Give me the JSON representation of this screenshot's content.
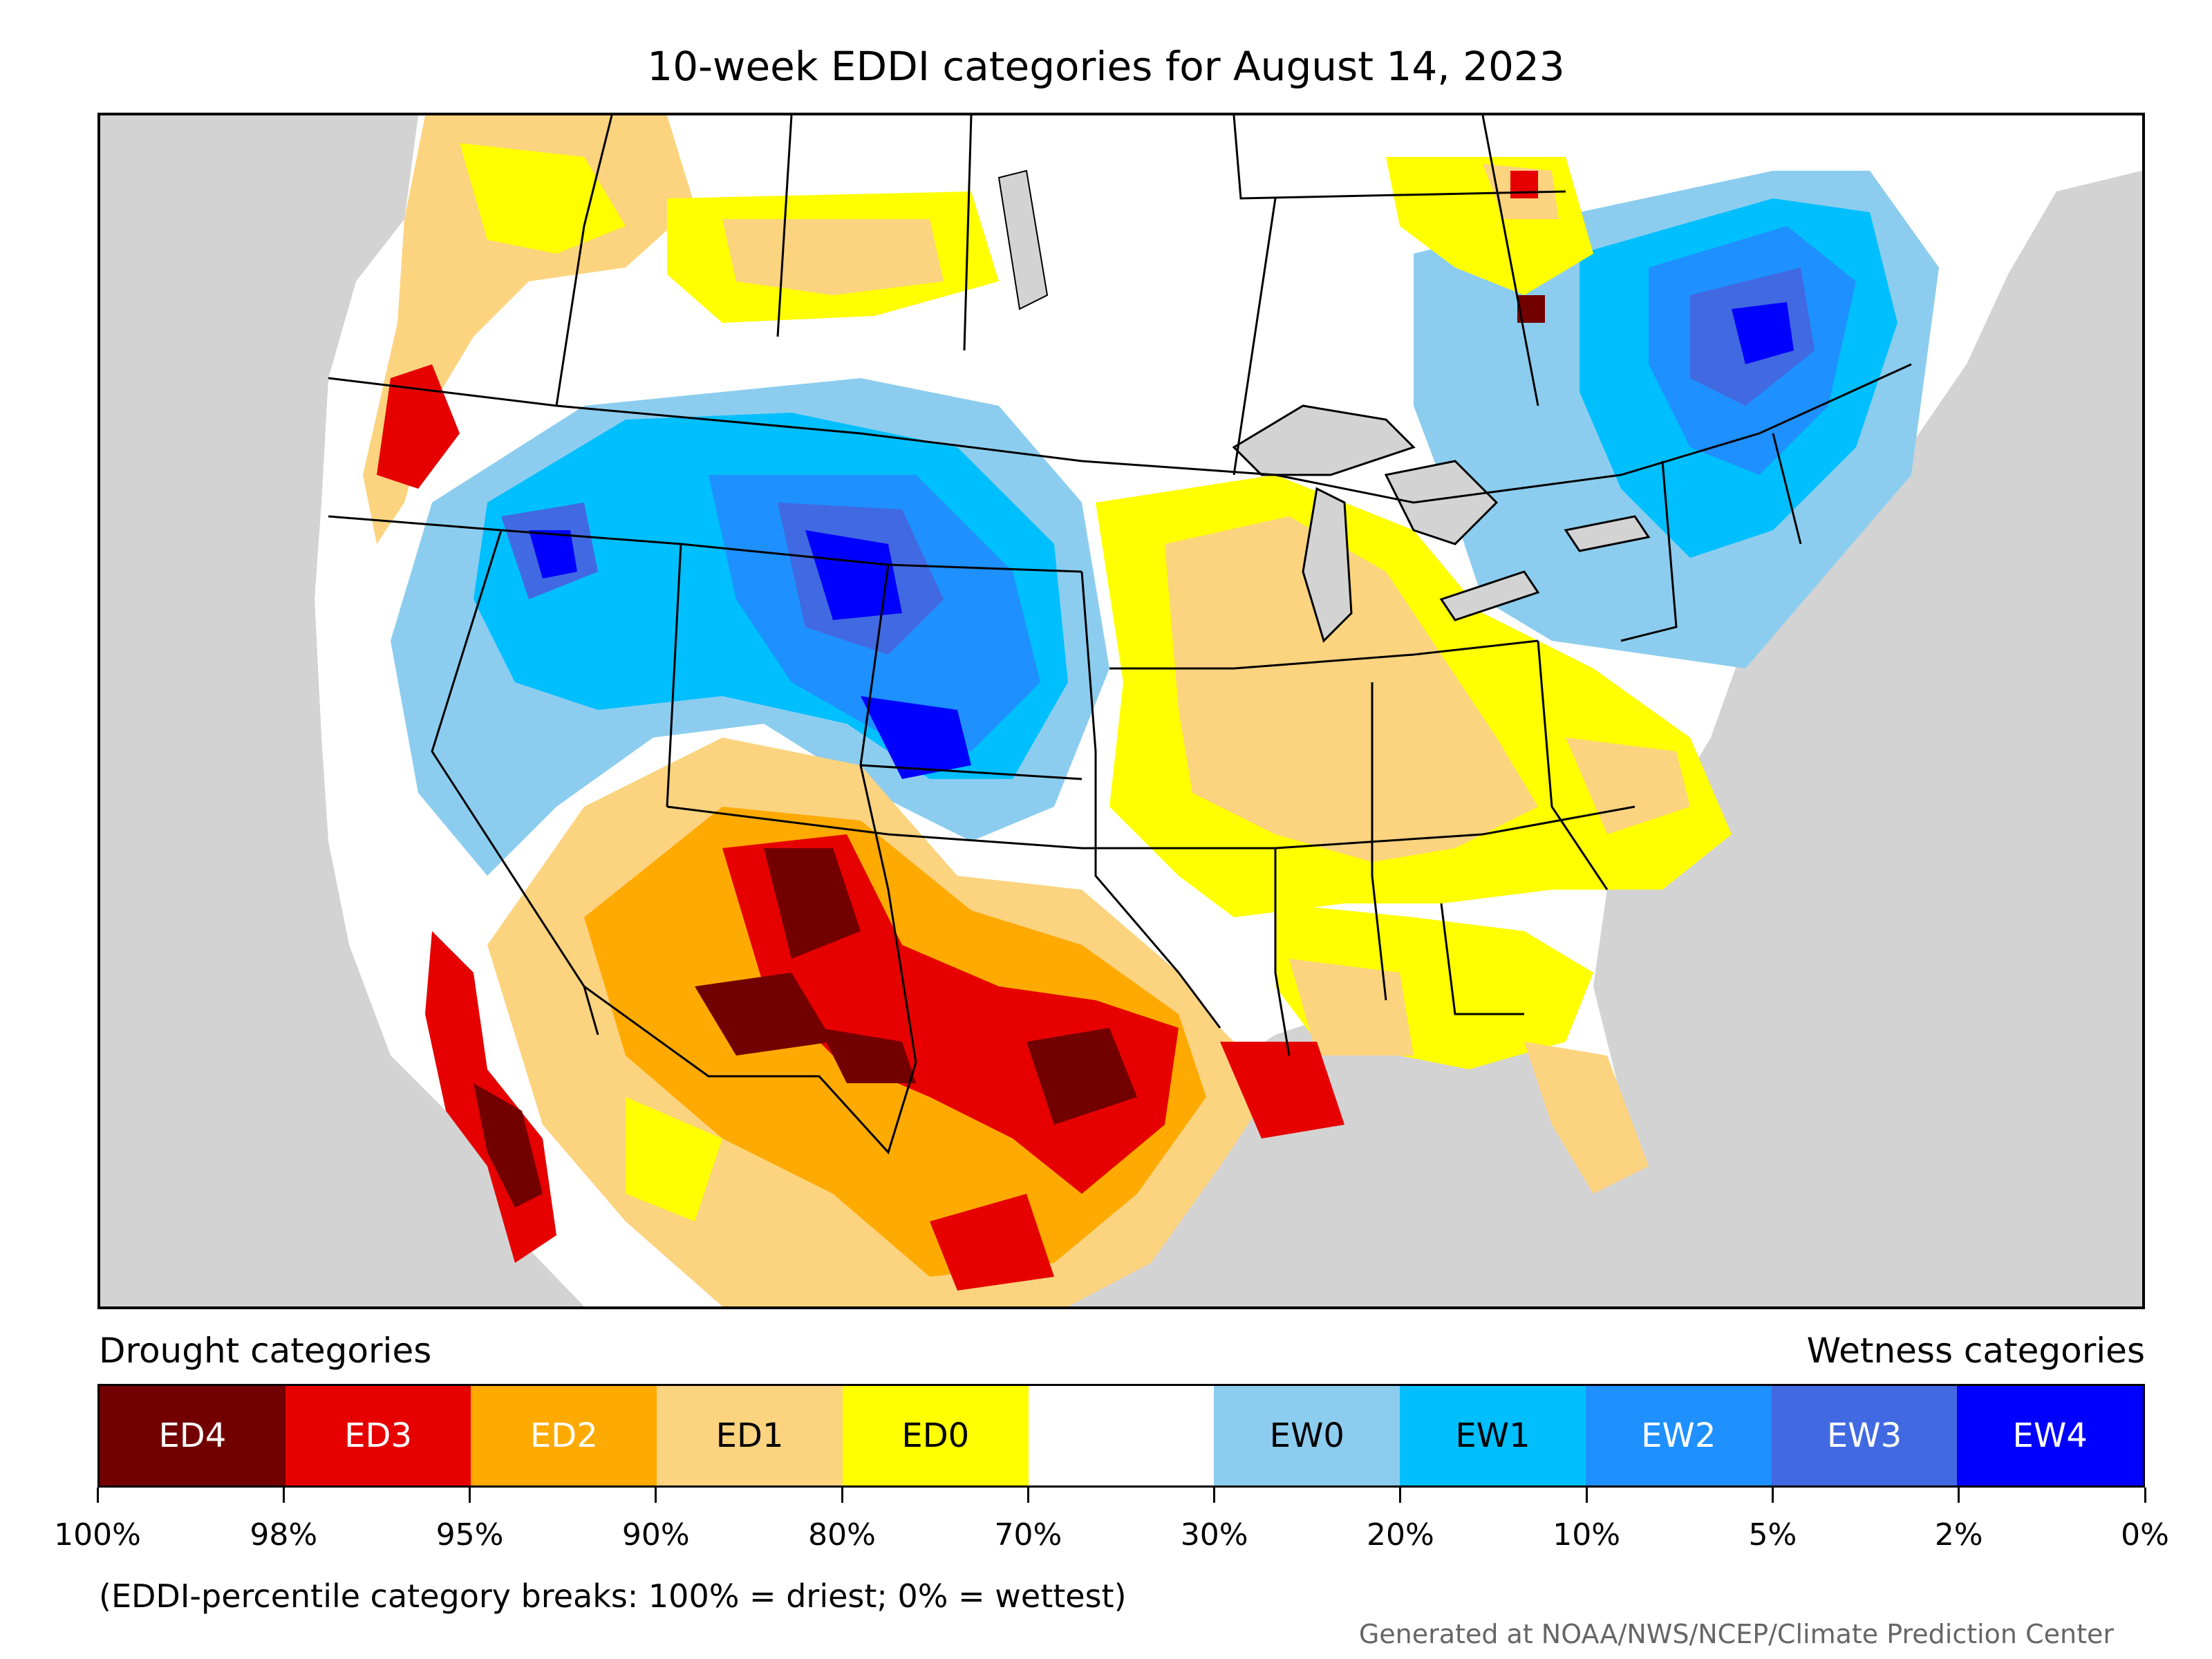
{
  "title": "10-week EDDI categories for August 14, 2023",
  "legend": {
    "drought_heading": "Drought categories",
    "wetness_heading": "Wetness categories",
    "categories": [
      {
        "label": "ED4",
        "color": "#730000",
        "text_color": "#ffffff"
      },
      {
        "label": "ED3",
        "color": "#e60000",
        "text_color": "#ffffff"
      },
      {
        "label": "ED2",
        "color": "#ffaa00",
        "text_color": "#ffffff"
      },
      {
        "label": "ED1",
        "color": "#fcd37f",
        "text_color": "#000000"
      },
      {
        "label": "ED0",
        "color": "#ffff00",
        "text_color": "#000000"
      },
      {
        "label": "",
        "color": "#ffffff",
        "text_color": "#000000"
      },
      {
        "label": "EW0",
        "color": "#8ccdef",
        "text_color": "#000000"
      },
      {
        "label": "EW1",
        "color": "#00bfff",
        "text_color": "#000000"
      },
      {
        "label": "EW2",
        "color": "#1e90ff",
        "text_color": "#ffffff"
      },
      {
        "label": "EW3",
        "color": "#4169e1",
        "text_color": "#ffffff"
      },
      {
        "label": "EW4",
        "color": "#0000ff",
        "text_color": "#ffffff"
      }
    ],
    "breaks": [
      "100%",
      "98%",
      "95%",
      "90%",
      "80%",
      "70%",
      "30%",
      "20%",
      "10%",
      "5%",
      "2%",
      "0%"
    ]
  },
  "note": "(EDDI-percentile category breaks: 100% = driest; 0% = wettest)",
  "credit": "Generated at NOAA/NWS/NCEP/Climate Prediction Center",
  "colors": {
    "ocean": "#d3d3d3",
    "land": "#ffffff",
    "border": "#000000"
  }
}
